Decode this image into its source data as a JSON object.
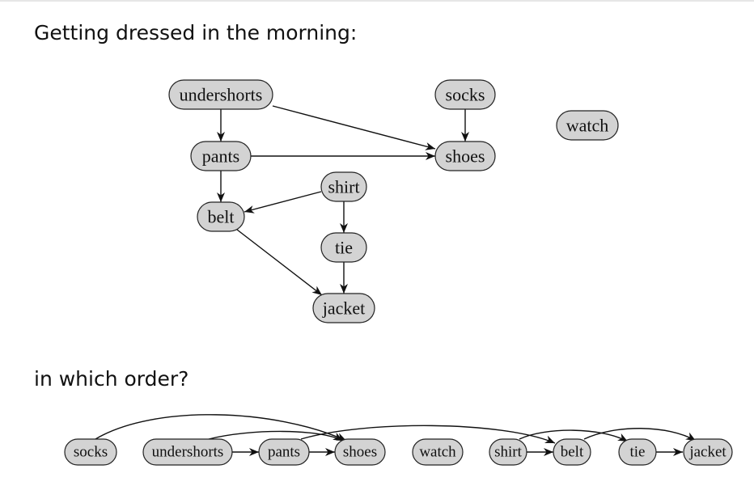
{
  "title": "Getting dressed in the morning:",
  "subtitle": "in which order?",
  "graph": {
    "nodes": [
      {
        "id": "undershorts",
        "label": "undershorts"
      },
      {
        "id": "socks",
        "label": "socks"
      },
      {
        "id": "watch",
        "label": "watch"
      },
      {
        "id": "pants",
        "label": "pants"
      },
      {
        "id": "shoes",
        "label": "shoes"
      },
      {
        "id": "shirt",
        "label": "shirt"
      },
      {
        "id": "belt",
        "label": "belt"
      },
      {
        "id": "tie",
        "label": "tie"
      },
      {
        "id": "jacket",
        "label": "jacket"
      }
    ],
    "edges": [
      {
        "from": "undershorts",
        "to": "pants"
      },
      {
        "from": "undershorts",
        "to": "shoes"
      },
      {
        "from": "socks",
        "to": "shoes"
      },
      {
        "from": "pants",
        "to": "shoes"
      },
      {
        "from": "pants",
        "to": "belt"
      },
      {
        "from": "shirt",
        "to": "belt"
      },
      {
        "from": "shirt",
        "to": "tie"
      },
      {
        "from": "belt",
        "to": "jacket"
      },
      {
        "from": "tie",
        "to": "jacket"
      }
    ]
  },
  "order": {
    "sequence": [
      "socks",
      "undershorts",
      "pants",
      "shoes",
      "watch",
      "shirt",
      "belt",
      "tie",
      "jacket"
    ],
    "edges": [
      {
        "from": "socks",
        "to": "shoes"
      },
      {
        "from": "undershorts",
        "to": "pants"
      },
      {
        "from": "undershorts",
        "to": "shoes"
      },
      {
        "from": "pants",
        "to": "shoes"
      },
      {
        "from": "pants",
        "to": "belt"
      },
      {
        "from": "shirt",
        "to": "belt"
      },
      {
        "from": "shirt",
        "to": "tie"
      },
      {
        "from": "belt",
        "to": "jacket"
      },
      {
        "from": "tie",
        "to": "jacket"
      }
    ]
  },
  "colors": {
    "node_fill": "#d3d3d3",
    "node_stroke": "#222222",
    "edge": "#111111",
    "text": "#111111"
  }
}
